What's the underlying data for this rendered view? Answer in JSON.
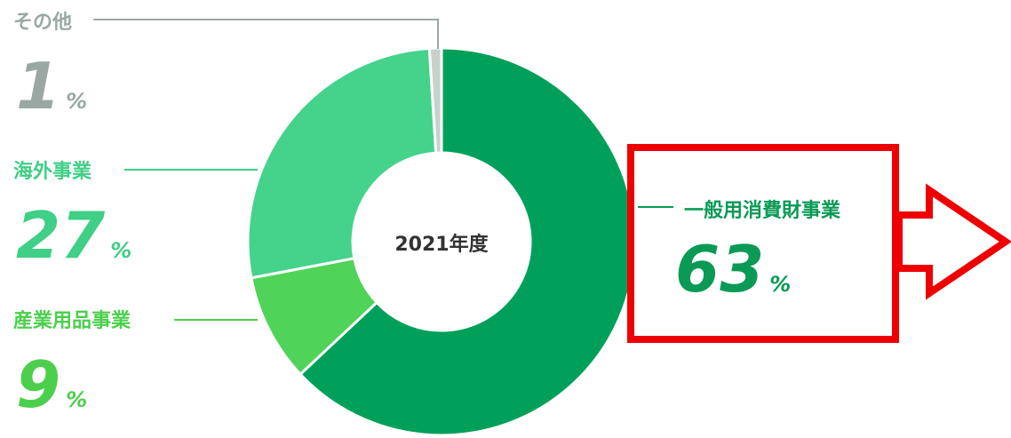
{
  "chart_data": {
    "type": "donut",
    "center_label": "2021年度",
    "categories": [
      "一般用消費財事業",
      "産業用品事業",
      "海外事業",
      "その他"
    ],
    "values": [
      63,
      9,
      27,
      1
    ],
    "unit": "%",
    "colors": [
      "#00a05a",
      "#4fd358",
      "#45d38c",
      "#c9d1cd"
    ]
  }
}
